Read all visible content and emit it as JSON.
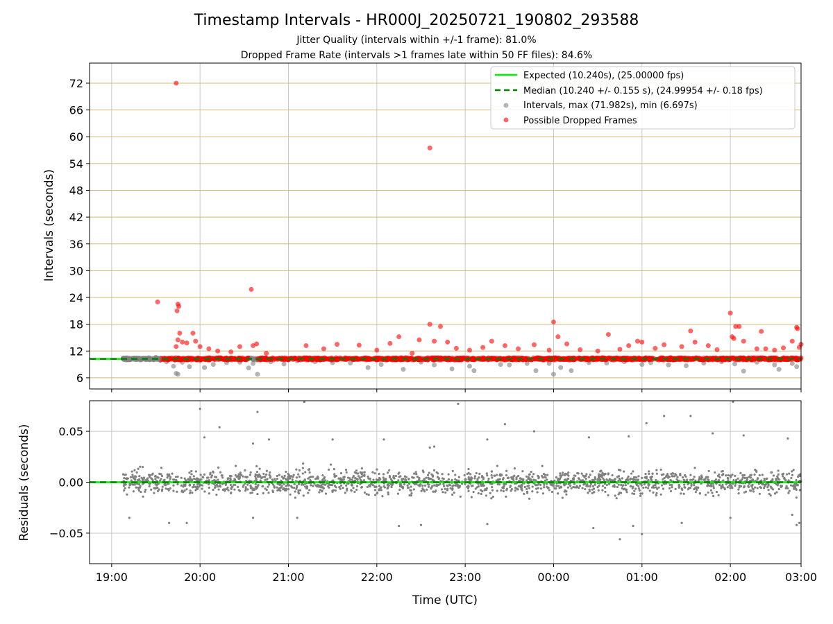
{
  "figure": {
    "title": "Timestamp Intervals - HR000J_20250721_190802_293588",
    "subtitle_1": "Jitter Quality (intervals within +/-1 frame): 81.0%",
    "subtitle_2": "Dropped Frame Rate (intervals >1 frames late within 50 FF files): 84.6%"
  },
  "colors": {
    "expected": "#00ee00",
    "median": "#008000",
    "intervals": "#808080",
    "dropped": "#ff0000",
    "hgrid_top": "#d4b870",
    "grid": "#c8c8c8"
  },
  "chart_data": [
    {
      "type": "scatter",
      "id": "intervals",
      "ylabel": "Intervals (seconds)",
      "xlim": [
        -0.25,
        7.8
      ],
      "ylim": [
        3.5,
        76.5
      ],
      "y_ticks": [
        6,
        12,
        18,
        24,
        30,
        36,
        42,
        48,
        54,
        60,
        66,
        72
      ],
      "y_tick_labels": [
        "6",
        "12",
        "18",
        "24",
        "30",
        "36",
        "42",
        "48",
        "54",
        "60",
        "66",
        "72"
      ],
      "grid": true,
      "legend_position": "top-right",
      "reference_lines": [
        {
          "name": "Expected (10.240s), (25.00000 fps)",
          "y": 10.24,
          "style": "solid",
          "color": "#00ee00"
        },
        {
          "name": "Median (10.240 +/- 0.155 s), (24.99954 +/- 0.18 fps)",
          "y": 10.24,
          "style": "dashed",
          "color": "#008000"
        }
      ],
      "series": [
        {
          "name": "Intervals, max (71.982s), min (6.697s)",
          "color": "#808080",
          "marker": "circle",
          "points": [
            [
              0.13,
              10.3
            ],
            [
              0.2,
              10.1
            ],
            [
              0.28,
              10.4
            ],
            [
              0.35,
              10.2
            ],
            [
              0.42,
              10.5
            ],
            [
              0.5,
              10.6
            ],
            [
              0.55,
              9.9
            ],
            [
              0.62,
              9.6
            ],
            [
              0.7,
              8.6
            ],
            [
              0.73,
              7.0
            ],
            [
              0.75,
              6.8
            ],
            [
              0.8,
              9.5
            ],
            [
              0.88,
              8.5
            ],
            [
              1.0,
              9.8
            ],
            [
              1.05,
              8.3
            ],
            [
              1.15,
              9.0
            ],
            [
              1.3,
              9.4
            ],
            [
              1.45,
              9.5
            ],
            [
              1.55,
              8.2
            ],
            [
              1.6,
              9.2
            ],
            [
              1.65,
              6.8
            ],
            [
              1.8,
              9.6
            ],
            [
              1.95,
              9.1
            ],
            [
              2.1,
              9.8
            ],
            [
              2.3,
              9.6
            ],
            [
              2.5,
              9.4
            ],
            [
              2.7,
              9.3
            ],
            [
              2.9,
              8.3
            ],
            [
              3.05,
              9.0
            ],
            [
              3.3,
              7.9
            ],
            [
              3.5,
              9.5
            ],
            [
              3.65,
              8.9
            ],
            [
              3.85,
              8.0
            ],
            [
              4.05,
              8.6
            ],
            [
              4.1,
              7.6
            ],
            [
              4.4,
              9.0
            ],
            [
              4.5,
              8.9
            ],
            [
              4.7,
              9.2
            ],
            [
              4.8,
              7.6
            ],
            [
              4.95,
              9.2
            ],
            [
              5.0,
              6.8
            ],
            [
              5.08,
              8.3
            ],
            [
              5.2,
              7.6
            ],
            [
              5.4,
              9.4
            ],
            [
              5.6,
              9.3
            ],
            [
              5.8,
              9.6
            ],
            [
              6.0,
              9.0
            ],
            [
              6.1,
              9.4
            ],
            [
              6.3,
              8.9
            ],
            [
              6.5,
              8.7
            ],
            [
              6.7,
              9.3
            ],
            [
              6.9,
              9.6
            ],
            [
              7.05,
              9.1
            ],
            [
              7.15,
              7.5
            ],
            [
              7.3,
              9.5
            ],
            [
              7.5,
              8.9
            ],
            [
              7.55,
              7.9
            ],
            [
              7.7,
              9.2
            ],
            [
              7.75,
              8.5
            ]
          ]
        },
        {
          "name": "Possible Dropped Frames",
          "color": "#ff0000",
          "marker": "circle",
          "points": [
            [
              0.52,
              23.0
            ],
            [
              0.73,
              72.0
            ],
            [
              0.74,
              21.0
            ],
            [
              0.75,
              22.5
            ],
            [
              0.76,
              22.0
            ],
            [
              0.73,
              13.0
            ],
            [
              0.75,
              14.5
            ],
            [
              0.77,
              16.0
            ],
            [
              0.8,
              14.0
            ],
            [
              0.85,
              13.8
            ],
            [
              0.92,
              16.0
            ],
            [
              0.95,
              14.2
            ],
            [
              1.0,
              13.0
            ],
            [
              1.1,
              12.5
            ],
            [
              1.2,
              12.0
            ],
            [
              1.35,
              11.8
            ],
            [
              1.45,
              13.0
            ],
            [
              1.58,
              25.8
            ],
            [
              1.6,
              13.2
            ],
            [
              1.64,
              13.6
            ],
            [
              1.75,
              11.5
            ],
            [
              2.2,
              13.2
            ],
            [
              2.4,
              12.5
            ],
            [
              2.55,
              13.5
            ],
            [
              2.8,
              13.3
            ],
            [
              3.0,
              12.2
            ],
            [
              3.15,
              13.7
            ],
            [
              3.25,
              15.2
            ],
            [
              3.4,
              11.5
            ],
            [
              3.48,
              14.5
            ],
            [
              3.6,
              57.5
            ],
            [
              3.6,
              18.0
            ],
            [
              3.65,
              14.2
            ],
            [
              3.72,
              17.5
            ],
            [
              3.8,
              14.0
            ],
            [
              3.9,
              12.6
            ],
            [
              4.05,
              12.2
            ],
            [
              4.2,
              12.8
            ],
            [
              4.3,
              14.2
            ],
            [
              4.45,
              13.2
            ],
            [
              4.6,
              12.5
            ],
            [
              4.78,
              13.4
            ],
            [
              4.95,
              12.2
            ],
            [
              5.0,
              18.5
            ],
            [
              5.05,
              15.2
            ],
            [
              5.15,
              13.6
            ],
            [
              5.3,
              12.3
            ],
            [
              5.5,
              12.0
            ],
            [
              5.62,
              15.7
            ],
            [
              5.75,
              12.4
            ],
            [
              5.85,
              13.2
            ],
            [
              5.95,
              14.2
            ],
            [
              6.0,
              14.0
            ],
            [
              6.15,
              12.6
            ],
            [
              6.25,
              13.4
            ],
            [
              6.45,
              13.0
            ],
            [
              6.55,
              16.5
            ],
            [
              6.6,
              14.0
            ],
            [
              6.75,
              13.2
            ],
            [
              6.85,
              12.3
            ],
            [
              7.0,
              20.5
            ],
            [
              7.02,
              15.2
            ],
            [
              7.04,
              14.8
            ],
            [
              7.06,
              17.5
            ],
            [
              7.1,
              17.5
            ],
            [
              7.15,
              14.2
            ],
            [
              7.3,
              12.5
            ],
            [
              7.35,
              16.4
            ],
            [
              7.4,
              12.5
            ],
            [
              7.5,
              12.2
            ],
            [
              7.6,
              12.7
            ],
            [
              7.7,
              14.2
            ],
            [
              7.75,
              17.3
            ],
            [
              7.76,
              17.0
            ],
            [
              7.8,
              13.5
            ],
            [
              7.78,
              12.8
            ]
          ]
        }
      ]
    },
    {
      "type": "scatter",
      "id": "residuals",
      "xlabel": "Time (UTC)",
      "ylabel": "Residuals (seconds)",
      "xlim": [
        -0.25,
        7.8
      ],
      "ylim": [
        -0.08,
        0.08
      ],
      "y_ticks": [
        -0.05,
        0.0,
        0.05
      ],
      "y_tick_labels": [
        "−0.05",
        "0.00",
        "0.05"
      ],
      "x_ticks": [
        0,
        1,
        2,
        3,
        4,
        5,
        6,
        7,
        7.8
      ],
      "x_tick_labels": [
        "19:00",
        "20:00",
        "21:00",
        "22:00",
        "23:00",
        "00:00",
        "01:00",
        "02:00",
        "03:00"
      ],
      "grid": true,
      "reference_lines": [
        {
          "y": 0,
          "style": "solid",
          "color": "#00ee00"
        },
        {
          "y": 0,
          "style": "dashed",
          "color": "#008000"
        }
      ],
      "series": [
        {
          "color": "#808080",
          "marker": "dot",
          "x_range": [
            0.13,
            7.8
          ],
          "n_points": 1900,
          "noise_sigma": 0.009,
          "outliers": [
            [
              1.0,
              0.072
            ],
            [
              1.05,
              0.044
            ],
            [
              1.22,
              0.054
            ],
            [
              1.6,
              0.038
            ],
            [
              1.65,
              0.069
            ],
            [
              1.78,
              0.042
            ],
            [
              2.18,
              0.079
            ],
            [
              2.5,
              0.042
            ],
            [
              3.08,
              0.042
            ],
            [
              3.6,
              0.034
            ],
            [
              3.65,
              0.035
            ],
            [
              3.92,
              0.077
            ],
            [
              4.25,
              0.042
            ],
            [
              4.45,
              0.057
            ],
            [
              4.78,
              0.05
            ],
            [
              5.4,
              0.044
            ],
            [
              5.85,
              0.045
            ],
            [
              6.05,
              0.058
            ],
            [
              6.25,
              0.065
            ],
            [
              6.55,
              0.065
            ],
            [
              6.8,
              0.048
            ],
            [
              7.03,
              0.079
            ],
            [
              7.15,
              0.046
            ],
            [
              7.65,
              0.043
            ],
            [
              0.2,
              -0.035
            ],
            [
              0.65,
              -0.04
            ],
            [
              0.85,
              -0.04
            ],
            [
              1.6,
              -0.035
            ],
            [
              2.1,
              -0.035
            ],
            [
              3.25,
              -0.043
            ],
            [
              3.5,
              -0.042
            ],
            [
              4.25,
              -0.041
            ],
            [
              5.45,
              -0.045
            ],
            [
              5.75,
              -0.056
            ],
            [
              5.9,
              -0.043
            ],
            [
              6.0,
              -0.051
            ],
            [
              6.45,
              -0.04
            ],
            [
              7.0,
              -0.035
            ],
            [
              7.75,
              -0.042
            ],
            [
              7.78,
              -0.04
            ],
            [
              7.7,
              -0.032
            ]
          ]
        }
      ]
    }
  ]
}
